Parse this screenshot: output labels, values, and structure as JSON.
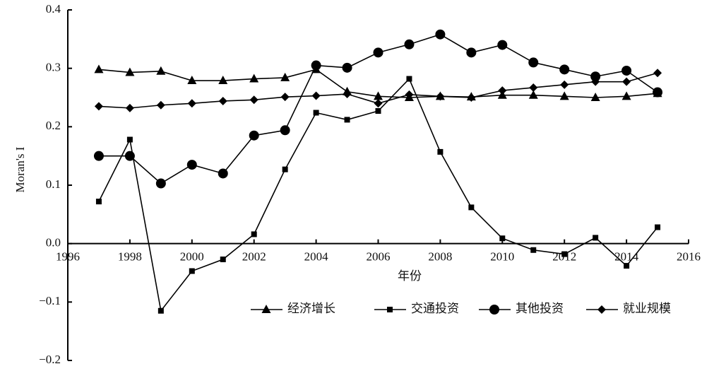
{
  "chart_data": {
    "type": "line",
    "x_label": "年份",
    "y_label": "Moran's I",
    "x": [
      1997,
      1998,
      1999,
      2000,
      2001,
      2002,
      2003,
      2004,
      2005,
      2006,
      2007,
      2008,
      2009,
      2010,
      2011,
      2012,
      2013,
      2014,
      2015
    ],
    "series": [
      {
        "name": "经济增长",
        "color": "#000000",
        "marker": "triangle",
        "values": [
          0.298,
          0.293,
          0.295,
          0.279,
          0.279,
          0.282,
          0.284,
          0.298,
          0.26,
          0.252,
          0.25,
          0.252,
          0.251,
          0.254,
          0.254,
          0.252,
          0.25,
          0.252,
          0.257
        ]
      },
      {
        "name": "交通投资",
        "color": "#000000",
        "marker": "square",
        "values": [
          0.072,
          0.178,
          -0.115,
          -0.047,
          -0.027,
          0.016,
          0.127,
          0.224,
          0.212,
          0.227,
          0.282,
          0.157,
          0.062,
          0.009,
          -0.011,
          -0.018,
          0.01,
          -0.038,
          0.028
        ]
      },
      {
        "name": "其他投资",
        "color": "#000000",
        "marker": "circle",
        "values": [
          0.15,
          0.15,
          0.103,
          0.135,
          0.12,
          0.185,
          0.194,
          0.305,
          0.301,
          0.327,
          0.341,
          0.358,
          0.327,
          0.34,
          0.31,
          0.298,
          0.286,
          0.296,
          0.259
        ]
      },
      {
        "name": "就业规模",
        "color": "#000000",
        "marker": "diamond",
        "values": [
          0.235,
          0.232,
          0.237,
          0.24,
          0.244,
          0.246,
          0.251,
          0.253,
          0.256,
          0.24,
          0.255,
          0.252,
          0.25,
          0.262,
          0.267,
          0.272,
          0.277,
          0.277,
          0.292
        ]
      }
    ],
    "xlim": [
      1996,
      2016
    ],
    "xticks": [
      1996,
      1998,
      2000,
      2002,
      2004,
      2006,
      2008,
      2010,
      2012,
      2014,
      2016
    ],
    "ylim": [
      -0.2,
      0.4
    ],
    "yticks": [
      {
        "value": -0.2,
        "label": "−0.2"
      },
      {
        "value": -0.1,
        "label": "−0.1"
      },
      {
        "value": 0,
        "label": "0.0"
      },
      0.1,
      0.2,
      0.3,
      0.4
    ],
    "grid": false,
    "legend": "bottom-right"
  }
}
